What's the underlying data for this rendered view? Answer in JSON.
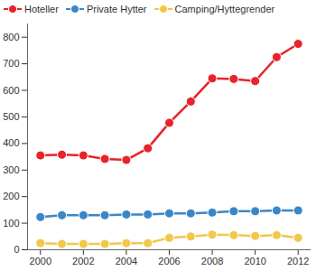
{
  "chart_data": {
    "type": "line",
    "x": [
      2000,
      2001,
      2002,
      2003,
      2004,
      2005,
      2006,
      2007,
      2008,
      2009,
      2010,
      2011,
      2012
    ],
    "series": [
      {
        "name": "Hoteller",
        "color": "#e8232a",
        "marker": "circle",
        "values": [
          355,
          358,
          355,
          342,
          338,
          382,
          478,
          558,
          645,
          643,
          635,
          725,
          775
        ]
      },
      {
        "name": "Private Hytter",
        "color": "#3a87c8",
        "marker": "circle",
        "values": [
          123,
          130,
          130,
          130,
          133,
          133,
          137,
          137,
          140,
          145,
          145,
          148,
          148
        ]
      },
      {
        "name": "Camping/Hyttegrender",
        "color": "#f0c84a",
        "marker": "circle",
        "values": [
          25,
          22,
          22,
          22,
          25,
          25,
          45,
          50,
          57,
          55,
          52,
          55,
          45
        ]
      }
    ],
    "xlim": [
      1999.4,
      2012.6
    ],
    "xticks": [
      2000,
      2002,
      2004,
      2006,
      2008,
      2010,
      2012
    ],
    "ylim": [
      0,
      850
    ],
    "yticks": [
      0,
      100,
      200,
      300,
      400,
      500,
      600,
      700,
      800
    ],
    "grid": false,
    "legend": "top"
  }
}
